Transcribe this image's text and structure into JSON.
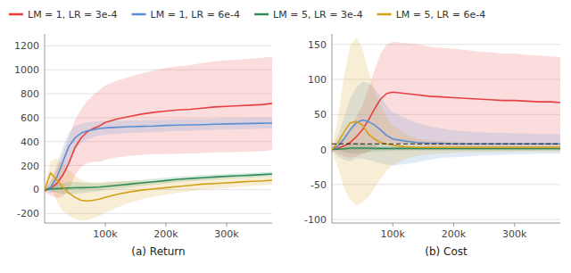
{
  "chart_data": [
    {
      "type": "line",
      "x_label": "(a) Return",
      "legend": "top",
      "grid": true,
      "x": [
        0,
        10000,
        20000,
        30000,
        40000,
        50000,
        60000,
        70000,
        80000,
        90000,
        100000,
        120000,
        140000,
        160000,
        180000,
        200000,
        220000,
        240000,
        260000,
        280000,
        300000,
        320000,
        340000,
        360000,
        375000
      ],
      "xlim": [
        0,
        375000
      ],
      "xticks": [
        {
          "value": 100000,
          "label": "100k"
        },
        {
          "value": 200000,
          "label": "200k"
        },
        {
          "value": 300000,
          "label": "300k"
        }
      ],
      "ylim": [
        -280,
        1300
      ],
      "yticks": [
        -200,
        0,
        200,
        400,
        600,
        800,
        1000,
        1200
      ],
      "series": [
        {
          "name": "LM = 1, LR = 3e-4",
          "color": "#e84040",
          "values": [
            -10,
            10,
            50,
            120,
            220,
            350,
            430,
            480,
            510,
            530,
            560,
            590,
            610,
            630,
            645,
            655,
            665,
            670,
            680,
            690,
            695,
            700,
            705,
            710,
            720
          ],
          "std": [
            15,
            60,
            120,
            180,
            220,
            230,
            240,
            260,
            280,
            300,
            310,
            320,
            330,
            340,
            350,
            360,
            365,
            370,
            375,
            380,
            385,
            385,
            388,
            390,
            390
          ]
        },
        {
          "name": "LM = 1, LR = 6e-4",
          "color": "#5b8fd4",
          "values": [
            -5,
            20,
            100,
            230,
            360,
            430,
            470,
            490,
            500,
            510,
            515,
            520,
            525,
            528,
            530,
            535,
            538,
            540,
            542,
            545,
            548,
            550,
            552,
            554,
            555
          ],
          "std": [
            10,
            50,
            100,
            130,
            120,
            100,
            80,
            70,
            65,
            60,
            58,
            55,
            53,
            52,
            51,
            50,
            49,
            48,
            47,
            47,
            46,
            46,
            45,
            45,
            45
          ]
        },
        {
          "name": "LM = 5, LR = 3e-4",
          "color": "#2e8b57",
          "values": [
            0,
            5,
            8,
            10,
            12,
            14,
            15,
            16,
            18,
            20,
            25,
            35,
            45,
            55,
            65,
            75,
            85,
            92,
            98,
            105,
            110,
            115,
            120,
            125,
            130
          ],
          "std": [
            5,
            20,
            35,
            45,
            50,
            48,
            45,
            40,
            35,
            32,
            30,
            28,
            27,
            26,
            25,
            24,
            23,
            22,
            22,
            21,
            21,
            20,
            20,
            20,
            19
          ]
        },
        {
          "name": "LM = 5, LR = 6e-4",
          "color": "#d4a017",
          "values": [
            0,
            140,
            80,
            20,
            -30,
            -65,
            -90,
            -95,
            -90,
            -80,
            -65,
            -40,
            -20,
            -5,
            5,
            15,
            25,
            35,
            45,
            50,
            55,
            62,
            68,
            72,
            78
          ],
          "std": [
            15,
            100,
            180,
            200,
            190,
            180,
            170,
            160,
            150,
            140,
            130,
            110,
            90,
            75,
            65,
            58,
            52,
            48,
            45,
            43,
            42,
            40,
            39,
            38,
            38
          ]
        }
      ]
    },
    {
      "type": "line",
      "x_label": "(b) Cost",
      "grid": true,
      "x": [
        0,
        10000,
        20000,
        30000,
        40000,
        50000,
        60000,
        70000,
        80000,
        90000,
        100000,
        120000,
        140000,
        160000,
        180000,
        200000,
        220000,
        240000,
        260000,
        280000,
        300000,
        320000,
        340000,
        360000,
        375000
      ],
      "xlim": [
        0,
        375000
      ],
      "xticks": [
        {
          "value": 100000,
          "label": "100k"
        },
        {
          "value": 200000,
          "label": "200k"
        },
        {
          "value": 300000,
          "label": "300k"
        }
      ],
      "ylim": [
        -105,
        165
      ],
      "yticks": [
        -100,
        -50,
        0,
        50,
        100,
        150
      ],
      "reference_line": 8,
      "series": [
        {
          "color": "#e84040",
          "values": [
            0,
            2,
            5,
            10,
            18,
            28,
            42,
            58,
            72,
            80,
            82,
            80,
            78,
            76,
            75,
            74,
            73,
            72,
            71,
            70,
            70,
            69,
            68,
            68,
            67
          ],
          "std": [
            2,
            8,
            15,
            22,
            28,
            35,
            45,
            55,
            65,
            70,
            72,
            72,
            72,
            71,
            70,
            70,
            69,
            68,
            68,
            67,
            67,
            66,
            66,
            65,
            65
          ]
        },
        {
          "color": "#5b8fd4",
          "values": [
            0,
            5,
            15,
            28,
            38,
            42,
            40,
            35,
            28,
            20,
            15,
            12,
            10,
            9,
            9,
            8,
            8,
            8,
            8,
            8,
            8,
            8,
            8,
            8,
            8
          ],
          "std": [
            2,
            15,
            30,
            45,
            50,
            55,
            55,
            52,
            48,
            42,
            38,
            33,
            28,
            24,
            21,
            19,
            18,
            17,
            16,
            16,
            15,
            15,
            14,
            14,
            14
          ]
        },
        {
          "color": "#2e8b57",
          "values": [
            0,
            0.5,
            1,
            2,
            2,
            2,
            2,
            1.5,
            1.5,
            1.5,
            1.5,
            1.5,
            1.5,
            1.5,
            1.5,
            1.5,
            1.5,
            1.5,
            1.5,
            1.5,
            1.5,
            1.5,
            1.5,
            1.5,
            1.5
          ],
          "std": [
            0.5,
            2,
            5,
            8,
            8,
            7,
            6,
            5,
            4,
            4,
            3,
            3,
            3,
            3,
            3,
            3,
            3,
            3,
            3,
            3,
            3,
            3,
            3,
            3,
            3
          ]
        },
        {
          "color": "#d4a017",
          "values": [
            0,
            10,
            25,
            38,
            40,
            35,
            22,
            15,
            10,
            8,
            6,
            4,
            3,
            3,
            3,
            3,
            3,
            3,
            3,
            3,
            3,
            3,
            3,
            3,
            3
          ],
          "std": [
            2,
            35,
            80,
            110,
            120,
            110,
            90,
            70,
            52,
            38,
            28,
            18,
            12,
            10,
            9,
            8,
            7,
            7,
            7,
            7,
            6,
            6,
            6,
            6,
            6
          ]
        }
      ]
    }
  ]
}
